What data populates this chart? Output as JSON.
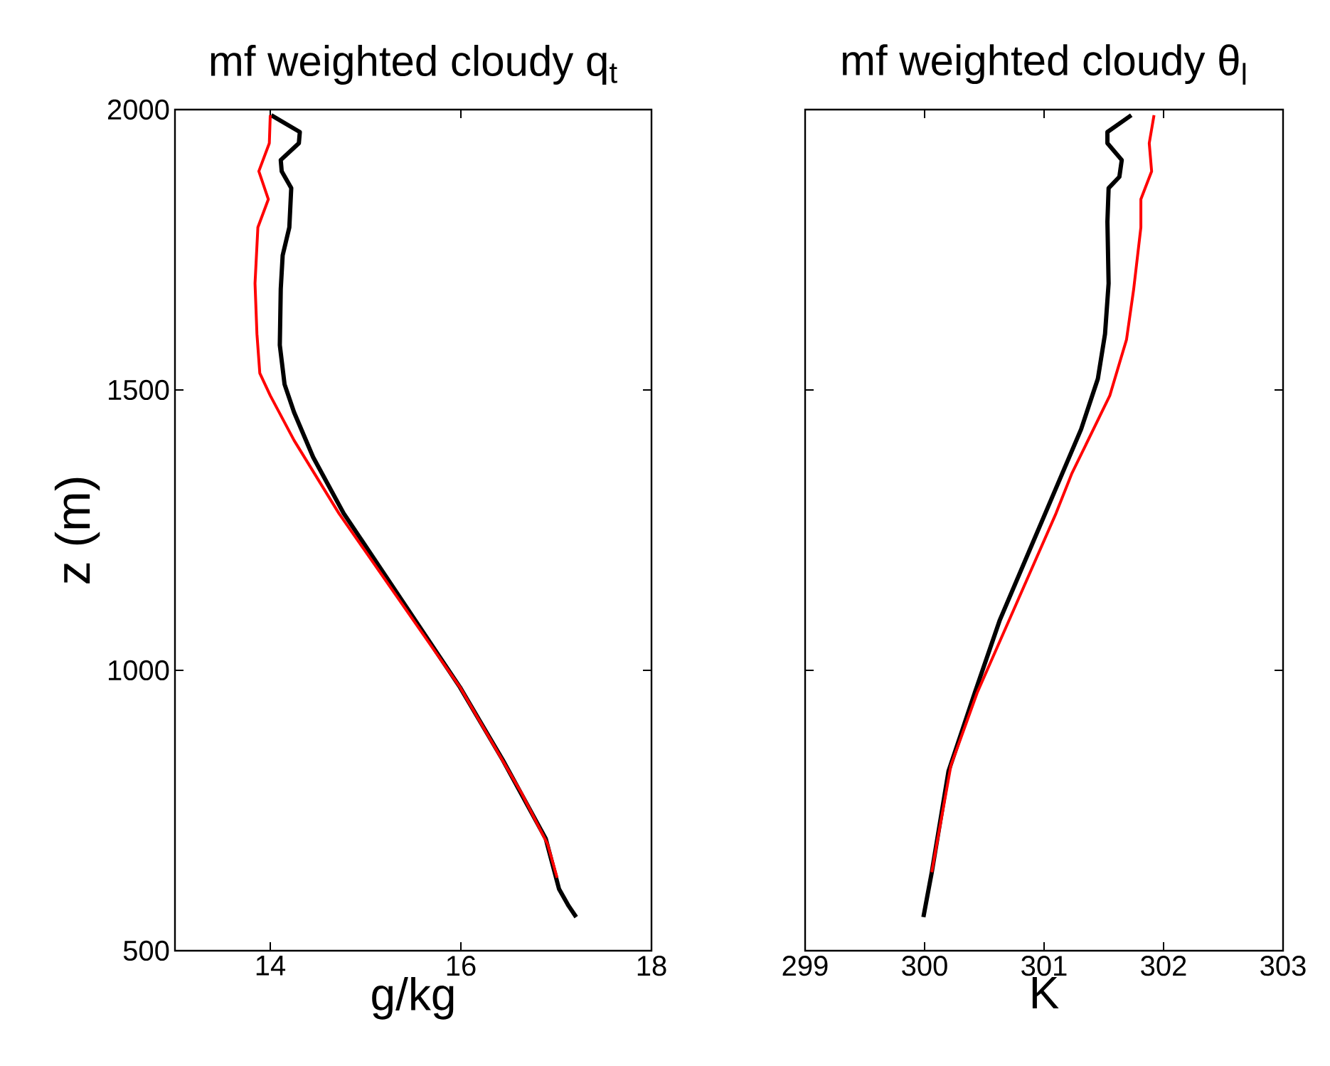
{
  "chart_data": [
    {
      "type": "line",
      "title": "mf weighted cloudy q$_{t}$",
      "xlabel": "g/kg",
      "ylabel": "z (m)",
      "xlim": [
        13,
        18
      ],
      "xticks": [
        14,
        16,
        18
      ],
      "ylim": [
        500,
        2000
      ],
      "yticks": [
        500,
        1000,
        1500,
        2000
      ],
      "series": [
        {
          "color": "#000000",
          "x": [
            14.01,
            14.31,
            14.3,
            14.11,
            14.12,
            14.22,
            14.2,
            14.13,
            14.11,
            14.1,
            14.15,
            14.25,
            14.45,
            14.77,
            15.44,
            15.99,
            16.44,
            16.89,
            17.03,
            17.13,
            17.21
          ],
          "values": [
            1990,
            1960,
            1940,
            1910,
            1890,
            1860,
            1790,
            1740,
            1680,
            1580,
            1510,
            1460,
            1380,
            1280,
            1110,
            970,
            840,
            700,
            610,
            580,
            560
          ]
        },
        {
          "color": "#ff0000",
          "x": [
            14.0,
            13.99,
            13.88,
            13.98,
            13.87,
            13.84,
            13.86,
            13.89,
            14.0,
            14.25,
            14.72,
            15.99,
            16.64,
            16.91,
            17.01
          ],
          "values": [
            1990,
            1940,
            1890,
            1840,
            1790,
            1690,
            1600,
            1530,
            1490,
            1410,
            1280,
            970,
            780,
            690,
            630
          ]
        }
      ]
    },
    {
      "type": "line",
      "title": "mf weighted cloudy θ$_{l}$",
      "xlabel": "K",
      "xlim": [
        299,
        303
      ],
      "xticks": [
        299,
        300,
        301,
        302,
        303
      ],
      "ylim": [
        500,
        2000
      ],
      "yticks": [
        500,
        1000,
        1500,
        2000
      ],
      "tick_labels": "x",
      "series": [
        {
          "color": "#000000",
          "x": [
            301.73,
            301.53,
            301.53,
            301.65,
            301.63,
            301.54,
            301.53,
            301.54,
            301.51,
            301.45,
            301.31,
            301.01,
            300.63,
            300.42,
            300.2,
            300.06,
            299.99
          ],
          "values": [
            1990,
            1960,
            1940,
            1910,
            1880,
            1860,
            1800,
            1690,
            1600,
            1520,
            1430,
            1280,
            1090,
            960,
            820,
            640,
            560
          ]
        },
        {
          "color": "#ff0000",
          "x": [
            301.92,
            301.88,
            301.9,
            301.81,
            301.81,
            301.75,
            301.69,
            301.55,
            301.23,
            301.1,
            300.75,
            300.44,
            300.22,
            300.06
          ],
          "values": [
            1990,
            1940,
            1890,
            1840,
            1790,
            1680,
            1590,
            1490,
            1350,
            1280,
            1110,
            960,
            830,
            640
          ]
        }
      ]
    }
  ]
}
